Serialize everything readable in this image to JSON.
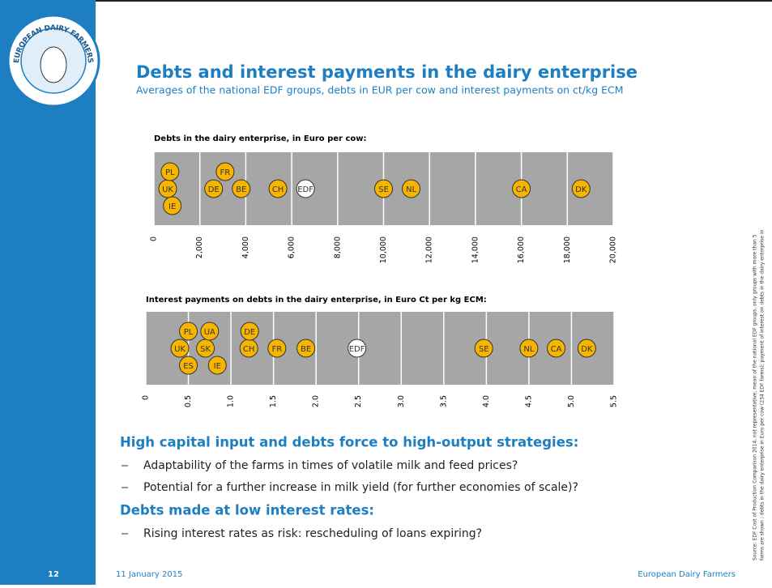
{
  "title": "Debts and interest payments in the dairy enterprise",
  "subtitle": "Averages of the national EDF groups, debts in EUR per cow and interest payments on ct/kg ECM",
  "logo_text": "EUROPEAN DAIRY FARMERS",
  "chart_data": [
    {
      "type": "dot",
      "title": "Debts in the dairy enterprise, in Euro per cow:",
      "labels": [
        "IE",
        "PL",
        "UK",
        "DE",
        "FR",
        "BE",
        "CH",
        "EDF",
        "SE",
        "NL",
        "CA",
        "DK"
      ],
      "values": [
        800,
        700,
        600,
        2600,
        3100,
        3800,
        5400,
        6600,
        10000,
        11200,
        16000,
        18600
      ],
      "colors": [
        "#f7b500",
        "#f7b500",
        "#f7b500",
        "#f7b500",
        "#f7b500",
        "#f7b500",
        "#f7b500",
        "#ffffff",
        "#f7b500",
        "#f7b500",
        "#f7b500",
        "#f7b500"
      ],
      "xlim": [
        0,
        20000
      ],
      "xticks": [
        0,
        {
          "value": 2000,
          "label": "2,000"
        },
        {
          "value": 4000,
          "label": "4,000"
        },
        {
          "value": 6000,
          "label": "6,000"
        },
        {
          "value": 8000,
          "label": "8,000"
        },
        {
          "value": 10000,
          "label": "10,000"
        },
        {
          "value": 12000,
          "label": "12,000"
        },
        {
          "value": 14000,
          "label": "14,000"
        },
        {
          "value": 16000,
          "label": "16,000"
        },
        {
          "value": 18000,
          "label": "18,000"
        },
        {
          "value": 20000,
          "label": "20,000"
        }
      ],
      "grid": true
    },
    {
      "type": "dot",
      "title": "Interest payments on debts in the dairy enterprise, in Euro Ct per kg ECM:",
      "labels": [
        "UK",
        "PL",
        "SK",
        "ES",
        "UA",
        "IE",
        "DE",
        "CH",
        "FR",
        "BE",
        "EDF",
        "SE",
        "NL",
        "CA",
        "DK"
      ],
      "values": [
        0.4,
        0.5,
        0.7,
        0.5,
        0.75,
        0.84,
        1.22,
        1.21,
        1.54,
        1.88,
        2.48,
        3.97,
        4.5,
        4.82,
        5.18
      ],
      "colors": [
        "#f7b500",
        "#f7b500",
        "#f7b500",
        "#f7b500",
        "#f7b500",
        "#f7b500",
        "#f7b500",
        "#f7b500",
        "#f7b500",
        "#f7b500",
        "#ffffff",
        "#f7b500",
        "#f7b500",
        "#f7b500",
        "#f7b500"
      ],
      "xlim": [
        0,
        5.5
      ],
      "xticks": [
        0,
        0.5,
        {
          "value": 1,
          "label": "1.0"
        },
        1.5,
        {
          "value": 2,
          "label": "2.0"
        },
        2.5,
        {
          "value": 3,
          "label": "3.0"
        },
        3.5,
        {
          "value": 4,
          "label": "4.0"
        },
        4.5,
        {
          "value": 5,
          "label": "5.0"
        },
        5.5
      ],
      "grid": true
    }
  ],
  "sections": [
    {
      "heading": "High capital input and debts force to high-output strategies:",
      "bullets": [
        "Adaptability of the farms in times of volatile milk and feed prices?",
        "Potential for a further increase in milk yield (for further economies of scale)?"
      ]
    },
    {
      "heading": "Debts made at low interest rates:",
      "bullets": [
        "Rising interest rates as risk: rescheduling of loans expiring?"
      ]
    }
  ],
  "source": [
    "Source: EDF Cost of Production Comparison 2014, not representative, mean of the  national EDF groups, only groups with more than 5",
    "farms are shown ; debts in the dairy enterprise in Euro per cow (234 EDF farms); payment of interest on debts in the dairy enterprise in"
  ],
  "footer": {
    "page": "12",
    "date": "11 January 2015",
    "org": "European Dairy Farmers"
  }
}
